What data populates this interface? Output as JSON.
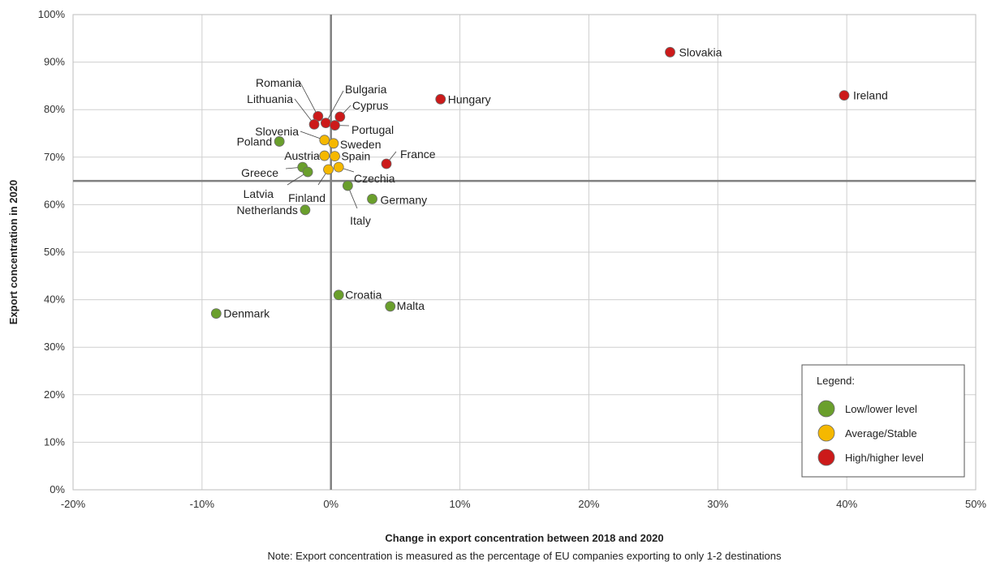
{
  "chart_data": {
    "type": "scatter",
    "xlabel": "Change in export concentration between 2018 and 2020",
    "ylabel": "Export concentration in 2020",
    "note": "Note: Export concentration is measured as the percentage of EU companies exporting to only 1-2 destinations",
    "xlim": [
      -20,
      50
    ],
    "ylim": [
      0,
      100
    ],
    "x_ticks": [
      "-20%",
      "-10%",
      "0%",
      "10%",
      "20%",
      "30%",
      "40%",
      "50%"
    ],
    "y_ticks": [
      "0%",
      "10%",
      "20%",
      "30%",
      "40%",
      "50%",
      "60%",
      "70%",
      "80%",
      "90%",
      "100%"
    ],
    "grid": true,
    "reference_lines": {
      "x": 0,
      "y": 65
    },
    "legend": {
      "title": "Legend:",
      "placement": "bottom-right",
      "items": [
        {
          "label": "Low/lower level",
          "color": "#6a9f2c"
        },
        {
          "label": "Average/Stable",
          "color": "#f5b800"
        },
        {
          "label": "High/higher level",
          "color": "#cc1a1a"
        }
      ]
    },
    "colors": {
      "low": "#6a9f2c",
      "average": "#f5b800",
      "high": "#cc1a1a"
    },
    "points": [
      {
        "label": "Slovakia",
        "x": 26.3,
        "y": 92.1,
        "level": "high"
      },
      {
        "label": "Ireland",
        "x": 39.8,
        "y": 83.0,
        "level": "high"
      },
      {
        "label": "Hungary",
        "x": 8.5,
        "y": 82.2,
        "level": "high"
      },
      {
        "label": "Romania",
        "x": -1.0,
        "y": 78.6,
        "level": "high"
      },
      {
        "label": "Bulgaria",
        "x": -0.4,
        "y": 77.2,
        "level": "high"
      },
      {
        "label": "Lithuania",
        "x": -1.3,
        "y": 76.9,
        "level": "high"
      },
      {
        "label": "Cyprus",
        "x": 0.7,
        "y": 78.5,
        "level": "high"
      },
      {
        "label": "Portugal",
        "x": 0.3,
        "y": 76.7,
        "level": "high"
      },
      {
        "label": "France",
        "x": 4.3,
        "y": 68.6,
        "level": "high"
      },
      {
        "label": "Slovenia",
        "x": -0.5,
        "y": 73.6,
        "level": "average"
      },
      {
        "label": "Sweden",
        "x": 0.2,
        "y": 72.9,
        "level": "average"
      },
      {
        "label": "Austria",
        "x": -0.5,
        "y": 70.3,
        "level": "average"
      },
      {
        "label": "Spain",
        "x": 0.3,
        "y": 70.2,
        "level": "average"
      },
      {
        "label": "Finland",
        "x": -0.2,
        "y": 67.4,
        "level": "average"
      },
      {
        "label": "Czechia",
        "x": 0.6,
        "y": 67.9,
        "level": "average"
      },
      {
        "label": "Poland",
        "x": -4.0,
        "y": 73.3,
        "level": "low"
      },
      {
        "label": "Greece",
        "x": -2.2,
        "y": 67.9,
        "level": "low"
      },
      {
        "label": "Latvia",
        "x": -1.8,
        "y": 66.9,
        "level": "low"
      },
      {
        "label": "Italy",
        "x": 1.3,
        "y": 64.0,
        "level": "low"
      },
      {
        "label": "Germany",
        "x": 3.2,
        "y": 61.2,
        "level": "low"
      },
      {
        "label": "Netherlands",
        "x": -2.0,
        "y": 58.9,
        "level": "low"
      },
      {
        "label": "Croatia",
        "x": 0.6,
        "y": 41.0,
        "level": "low"
      },
      {
        "label": "Malta",
        "x": 4.6,
        "y": 38.6,
        "level": "low"
      },
      {
        "label": "Denmark",
        "x": -8.9,
        "y": 37.1,
        "level": "low"
      }
    ]
  }
}
